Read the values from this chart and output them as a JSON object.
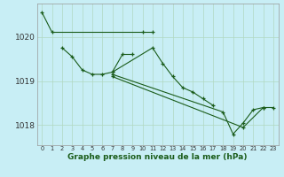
{
  "xlabel": "Graphe pression niveau de la mer (hPa)",
  "bg_color": "#c8eef5",
  "grid_color": "#b0d8c0",
  "line_color": "#1a5c1a",
  "xlim": [
    -0.5,
    23.5
  ],
  "ylim": [
    1017.55,
    1020.75
  ],
  "yticks": [
    1018,
    1019,
    1020
  ],
  "xticks": [
    0,
    1,
    2,
    3,
    4,
    5,
    6,
    7,
    8,
    9,
    10,
    11,
    12,
    13,
    14,
    15,
    16,
    17,
    18,
    19,
    20,
    21,
    22,
    23
  ],
  "series": [
    {
      "x": [
        0,
        1,
        10,
        11
      ],
      "y": [
        1020.55,
        1020.1,
        1020.1,
        1020.1
      ]
    },
    {
      "x": [
        2,
        3,
        4,
        5,
        6,
        7,
        8,
        9
      ],
      "y": [
        1019.75,
        1019.55,
        1019.25,
        1019.15,
        1019.15,
        1019.2,
        1019.6,
        1019.6
      ]
    },
    {
      "x": [
        7,
        11,
        12,
        13,
        14,
        15,
        16,
        17
      ],
      "y": [
        1019.2,
        1019.75,
        1019.4,
        1019.1,
        1018.85,
        1018.75,
        1018.6,
        1018.45
      ]
    },
    {
      "x": [
        7,
        18,
        19,
        20,
        21,
        22
      ],
      "y": [
        1019.15,
        1018.3,
        1017.8,
        1018.05,
        1018.35,
        1018.4
      ]
    },
    {
      "x": [
        7,
        20,
        22,
        23
      ],
      "y": [
        1019.1,
        1017.95,
        1018.4,
        1018.4
      ]
    }
  ]
}
